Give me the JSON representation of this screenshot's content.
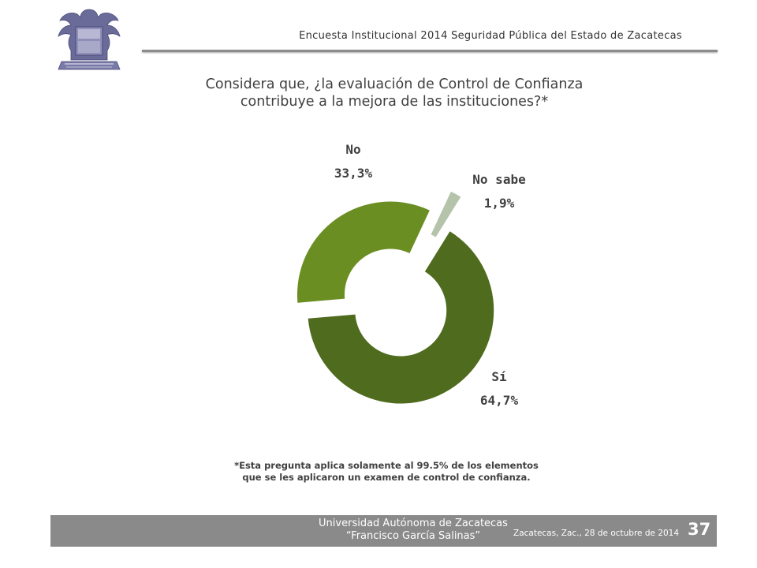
{
  "header": {
    "title": "Encuesta Institucional 2014 Seguridad Pública del Estado de Zacatecas"
  },
  "question": {
    "line1": "Considera que, ¿la evaluación de Control de Confianza",
    "line2": "contribuye a la mejora de las instituciones?*"
  },
  "chart_data": {
    "type": "pie",
    "style": "donut, exploded slices",
    "title": "",
    "series": [
      {
        "label": "No",
        "value": 33.3,
        "value_label": "33,3%",
        "color": "#6b8e23"
      },
      {
        "label": "No sabe",
        "value": 1.9,
        "value_label": "1,9%",
        "color": "#b4c3aa"
      },
      {
        "label": "Sí",
        "value": 64.7,
        "value_label": "64,7%",
        "color": "#4f6b1d"
      }
    ]
  },
  "footnote": {
    "line1": "*Esta pregunta aplica solamente al 99.5% de los elementos",
    "line2": "que se les aplicaron un examen de control de confianza."
  },
  "footer": {
    "university_line1": "Universidad Autónoma de Zacatecas",
    "university_line2": "“Francisco García Salinas”",
    "date": "Zacatecas, Zac., 28 de octubre de 2014",
    "page_number": "37"
  },
  "logo": {
    "name": "university-seal",
    "color": "#5a5a8c"
  }
}
